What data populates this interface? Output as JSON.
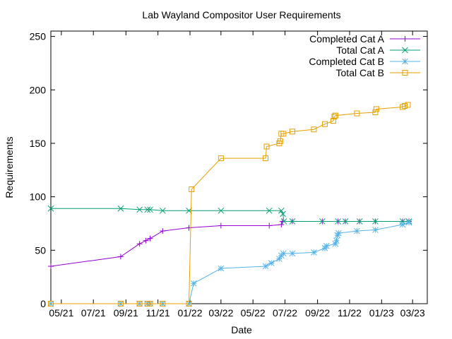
{
  "chart_data": {
    "type": "line",
    "title": "Lab Wayland Compositor User Requirements",
    "xlabel": "Date",
    "ylabel": "Requirements",
    "ylim": [
      0,
      255
    ],
    "xlim": [
      "2021-04-11",
      "2023-03-29"
    ],
    "grid": false,
    "legend_position": "top-right",
    "y_ticks": [
      0,
      50,
      100,
      150,
      200,
      250
    ],
    "x_ticks": [
      {
        "label": "05/21",
        "date": "2021-05-01"
      },
      {
        "label": "07/21",
        "date": "2021-07-01"
      },
      {
        "label": "09/21",
        "date": "2021-09-01"
      },
      {
        "label": "11/21",
        "date": "2021-11-01"
      },
      {
        "label": "01/22",
        "date": "2022-01-01"
      },
      {
        "label": "03/22",
        "date": "2022-03-01"
      },
      {
        "label": "05/22",
        "date": "2022-05-01"
      },
      {
        "label": "07/22",
        "date": "2022-07-01"
      },
      {
        "label": "09/22",
        "date": "2022-09-01"
      },
      {
        "label": "11/22",
        "date": "2022-11-01"
      },
      {
        "label": "01/23",
        "date": "2023-01-01"
      },
      {
        "label": "03/23",
        "date": "2023-03-01"
      }
    ],
    "series": [
      {
        "name": "Completed Cat A",
        "color": "#9400d3",
        "marker": "plus",
        "points": [
          [
            "2021-04-11",
            35
          ],
          [
            "2021-08-22",
            44
          ],
          [
            "2021-09-27",
            56
          ],
          [
            "2021-10-09",
            59
          ],
          [
            "2021-10-17",
            61
          ],
          [
            "2021-11-10",
            68
          ],
          [
            "2021-12-30",
            71
          ],
          [
            "2022-03-01",
            73
          ],
          [
            "2022-06-01",
            73
          ],
          [
            "2022-06-24",
            74
          ],
          [
            "2022-06-26",
            77
          ],
          [
            "2022-07-15",
            77
          ],
          [
            "2022-09-10",
            77
          ],
          [
            "2022-10-10",
            77
          ],
          [
            "2022-10-24",
            77
          ],
          [
            "2022-11-20",
            77
          ],
          [
            "2022-12-20",
            77
          ],
          [
            "2023-02-10",
            77
          ],
          [
            "2023-02-22",
            77
          ]
        ]
      },
      {
        "name": "Total Cat A",
        "color": "#009e73",
        "marker": "cross",
        "points": [
          [
            "2021-04-11",
            89
          ],
          [
            "2021-08-22",
            89
          ],
          [
            "2021-09-27",
            88
          ],
          [
            "2021-10-12",
            88
          ],
          [
            "2021-10-17",
            88
          ],
          [
            "2021-11-10",
            87
          ],
          [
            "2021-12-30",
            87
          ],
          [
            "2022-03-01",
            87
          ],
          [
            "2022-06-01",
            87
          ],
          [
            "2022-06-24",
            87
          ],
          [
            "2022-06-27",
            84
          ],
          [
            "2022-06-29",
            77
          ],
          [
            "2022-07-15",
            77
          ],
          [
            "2022-09-10",
            77
          ],
          [
            "2022-10-10",
            77
          ],
          [
            "2022-10-24",
            77
          ],
          [
            "2022-11-20",
            77
          ],
          [
            "2022-12-20",
            77
          ],
          [
            "2023-02-10",
            77
          ],
          [
            "2023-02-22",
            77
          ]
        ]
      },
      {
        "name": "Completed Cat B",
        "color": "#56b4e9",
        "marker": "star",
        "points": [
          [
            "2021-04-11",
            0
          ],
          [
            "2021-08-22",
            0
          ],
          [
            "2021-09-27",
            0
          ],
          [
            "2021-10-12",
            0
          ],
          [
            "2021-10-17",
            0
          ],
          [
            "2021-11-10",
            0
          ],
          [
            "2021-12-30",
            0
          ],
          [
            "2022-01-08",
            19
          ],
          [
            "2022-03-01",
            33
          ],
          [
            "2022-05-25",
            35
          ],
          [
            "2022-06-05",
            38
          ],
          [
            "2022-06-20",
            42
          ],
          [
            "2022-06-24",
            45
          ],
          [
            "2022-06-28",
            47
          ],
          [
            "2022-07-15",
            47
          ],
          [
            "2022-08-25",
            48
          ],
          [
            "2022-09-15",
            52
          ],
          [
            "2022-09-18",
            54
          ],
          [
            "2022-10-05",
            56
          ],
          [
            "2022-10-07",
            59
          ],
          [
            "2022-10-09",
            64
          ],
          [
            "2022-10-11",
            66
          ],
          [
            "2022-11-15",
            68
          ],
          [
            "2022-12-20",
            69
          ],
          [
            "2023-02-10",
            74
          ],
          [
            "2023-02-22",
            76
          ]
        ]
      },
      {
        "name": "Total Cat B",
        "color": "#e69f00",
        "marker": "square",
        "points": [
          [
            "2021-04-11",
            0
          ],
          [
            "2021-08-22",
            0
          ],
          [
            "2021-09-27",
            0
          ],
          [
            "2021-10-12",
            0
          ],
          [
            "2021-10-17",
            0
          ],
          [
            "2021-11-10",
            0
          ],
          [
            "2021-12-30",
            0
          ],
          [
            "2022-01-04",
            107
          ],
          [
            "2022-03-01",
            136
          ],
          [
            "2022-05-25",
            136
          ],
          [
            "2022-05-27",
            147
          ],
          [
            "2022-06-20",
            150
          ],
          [
            "2022-06-22",
            152
          ],
          [
            "2022-06-24",
            159
          ],
          [
            "2022-06-28",
            159
          ],
          [
            "2022-07-15",
            161
          ],
          [
            "2022-08-25",
            163
          ],
          [
            "2022-09-15",
            168
          ],
          [
            "2022-10-01",
            171
          ],
          [
            "2022-10-03",
            175
          ],
          [
            "2022-10-05",
            176
          ],
          [
            "2022-11-15",
            178
          ],
          [
            "2022-12-20",
            179
          ],
          [
            "2022-12-22",
            182
          ],
          [
            "2023-02-10",
            184
          ],
          [
            "2023-02-14",
            185
          ],
          [
            "2023-02-20",
            186
          ]
        ]
      }
    ]
  }
}
